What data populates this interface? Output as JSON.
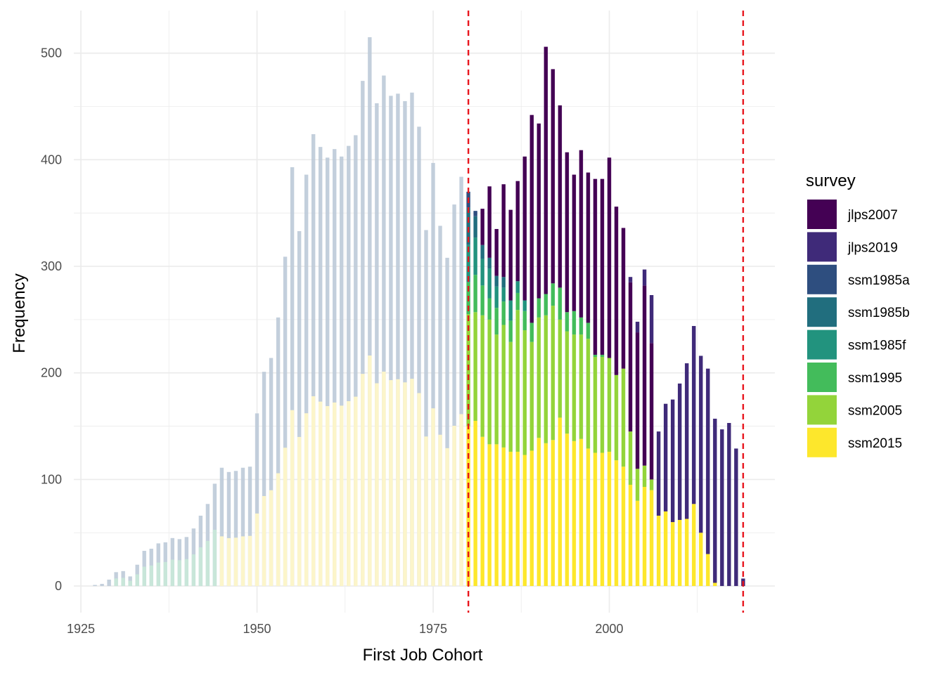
{
  "colors": {
    "jlps2007": "#440154",
    "jlps2019": "#3F2A79",
    "ssm1985a": "#2E4E7F",
    "ssm1985b": "#216E7E",
    "ssm1985f": "#22937E",
    "ssm1995": "#43BC5B",
    "ssm2005": "#93D43A",
    "ssm2015": "#FDE72C",
    "cutoff_line": "#E8141C",
    "grid": "#EBEBEB",
    "faded_bar": "#BDCAD8"
  },
  "chart_data": {
    "type": "bar",
    "stacked": true,
    "title": "",
    "xlabel": "First Job Cohort",
    "ylabel": "Frequency",
    "xlim": [
      1924,
      2023.5
    ],
    "ylim": [
      -25,
      540
    ],
    "x_ticks": [
      1925,
      1950,
      1975,
      2000
    ],
    "y_ticks": [
      0,
      100,
      200,
      300,
      400,
      500
    ],
    "grid": true,
    "legend": {
      "title": "survey",
      "position": "right",
      "entries": [
        "jlps2007",
        "jlps2019",
        "ssm1985a",
        "ssm1985b",
        "ssm1985f",
        "ssm1995",
        "ssm2005",
        "ssm2015"
      ]
    },
    "cutoff_lines": [
      1980,
      2019
    ],
    "highlight_range": [
      1980,
      2019
    ],
    "faded_totals": {
      "years": [
        1927,
        1928,
        1929,
        1930,
        1931,
        1932,
        1933,
        1934,
        1935,
        1936,
        1937,
        1938,
        1939,
        1940,
        1941,
        1942,
        1943,
        1944,
        1945,
        1946,
        1947,
        1948,
        1949,
        1950,
        1951,
        1952,
        1953,
        1954,
        1955,
        1956,
        1957,
        1958,
        1959,
        1960,
        1961,
        1962,
        1963,
        1964,
        1965,
        1966,
        1967,
        1968,
        1969,
        1970,
        1971,
        1972,
        1973,
        1974,
        1975,
        1976,
        1977,
        1978,
        1979
      ],
      "values": [
        1,
        2,
        6,
        13,
        14,
        9,
        20,
        33,
        35,
        40,
        41,
        45,
        44,
        46,
        54,
        66,
        77,
        96,
        111,
        107,
        108,
        111,
        112,
        162,
        201,
        214,
        252,
        309,
        393,
        333,
        386,
        424,
        412,
        402,
        410,
        403,
        413,
        423,
        474,
        515,
        453,
        479,
        460,
        462,
        455,
        463,
        431,
        334,
        397,
        338,
        308,
        358,
        384
      ]
    },
    "series": [
      {
        "name": "ssm2015",
        "years": [
          1980,
          1981,
          1982,
          1983,
          1984,
          1985,
          1986,
          1987,
          1988,
          1989,
          1990,
          1991,
          1992,
          1993,
          1994,
          1995,
          1996,
          1997,
          1998,
          1999,
          2000,
          2001,
          2002,
          2003,
          2004,
          2005,
          2006,
          2007,
          2008,
          2009,
          2010,
          2011,
          2012,
          2013,
          2014,
          2015
        ],
        "values": [
          150,
          155,
          140,
          133,
          133,
          130,
          126,
          126,
          123,
          127,
          139,
          134,
          137,
          158,
          143,
          136,
          138,
          129,
          125,
          125,
          126,
          118,
          112,
          95,
          80,
          93,
          90,
          66,
          70,
          60,
          62,
          63,
          77,
          50,
          30,
          3
        ]
      },
      {
        "name": "ssm2005",
        "years": [
          1980,
          1981,
          1982,
          1983,
          1984,
          1985,
          1986,
          1987,
          1988,
          1989,
          1990,
          1991,
          1992,
          1993,
          1994,
          1995,
          1996,
          1997,
          1998,
          1999,
          2000,
          2001,
          2002,
          2003,
          2004,
          2005,
          2006
        ],
        "values": [
          105,
          102,
          114,
          117,
          103,
          115,
          103,
          133,
          117,
          102,
          113,
          120,
          126,
          92,
          96,
          100,
          98,
          103,
          90,
          90,
          88,
          80,
          92,
          50,
          30,
          20,
          10
        ]
      },
      {
        "name": "ssm1995",
        "years": [
          1980,
          1981,
          1982,
          1983,
          1984,
          1985,
          1986,
          1987,
          1988,
          1989,
          1990,
          1991,
          1992,
          1993,
          1994,
          1995,
          1996,
          1997,
          1998,
          1999
        ],
        "values": [
          30,
          35,
          28,
          20,
          25,
          22,
          20,
          16,
          18,
          18,
          18,
          20,
          21,
          30,
          18,
          22,
          16,
          15,
          2,
          2
        ]
      },
      {
        "name": "ssm1985f",
        "years": [
          1980,
          1981,
          1982,
          1983,
          1984,
          1985,
          1986,
          1987,
          1988
        ],
        "values": [
          35,
          35,
          25,
          28,
          20,
          13,
          19,
          11,
          10
        ]
      },
      {
        "name": "ssm1985b",
        "years": [
          1980,
          1981,
          1982,
          1983,
          1984,
          1985
        ],
        "values": [
          35,
          20,
          13,
          10,
          10,
          10
        ]
      },
      {
        "name": "ssm1985a",
        "years": [
          1980,
          1981
        ],
        "values": [
          15,
          5
        ]
      },
      {
        "name": "jlps2007",
        "years": [
          1982,
          1983,
          1984,
          1985,
          1986,
          1987,
          1988,
          1989,
          1990,
          1991,
          1992,
          1993,
          1994,
          1995,
          1996,
          1997,
          1998,
          1999,
          2000,
          2001,
          2002,
          2003,
          2004,
          2005,
          2006
        ],
        "values": [
          34,
          67,
          44,
          87,
          85,
          94,
          135,
          195,
          164,
          232,
          201,
          171,
          150,
          128,
          157,
          141,
          165,
          165,
          188,
          158,
          132,
          140,
          128,
          169,
          128
        ]
      },
      {
        "name": "jlps2019",
        "years": [
          2003,
          2004,
          2005,
          2006,
          2007,
          2008,
          2009,
          2010,
          2011,
          2012,
          2013,
          2014,
          2015,
          2016,
          2017,
          2018,
          2019
        ],
        "values": [
          5,
          10,
          15,
          45,
          79,
          101,
          115,
          128,
          146,
          167,
          166,
          174,
          154,
          147,
          153,
          129,
          7
        ]
      }
    ]
  }
}
